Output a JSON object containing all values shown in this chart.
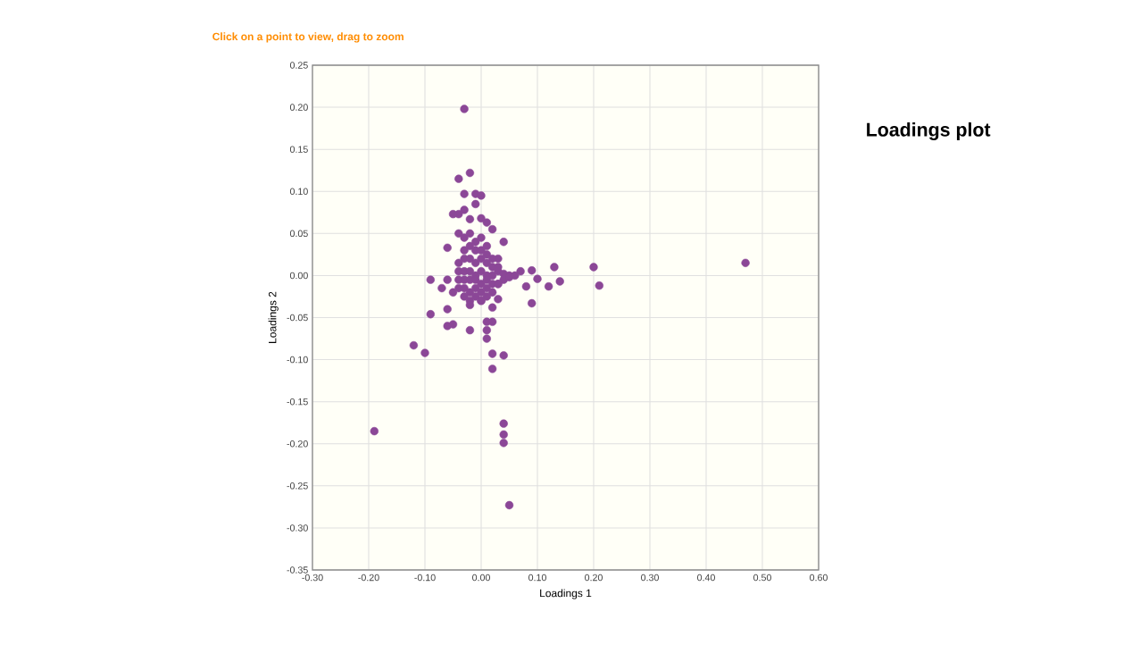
{
  "chart_data": {
    "type": "scatter",
    "title": "Loadings plot",
    "annotations": [
      "Click on a point to view, drag to zoom"
    ],
    "xlabel": "Loadings 1",
    "ylabel": "Loadings 2",
    "x": [
      0.47,
      0.21,
      0.2,
      0.14,
      0.13,
      0.12,
      0.1,
      0.09,
      0.09,
      0.08,
      0.07,
      -0.03,
      -0.02,
      -0.04,
      -0.03,
      -0.01,
      0.0,
      -0.01,
      -0.03,
      -0.04,
      -0.05,
      -0.02,
      0.0,
      0.01,
      0.02,
      -0.04,
      0.04,
      0.03,
      -0.06,
      -0.09,
      -0.06,
      -0.07,
      -0.05,
      -0.06,
      -0.09,
      -0.06,
      -0.05,
      -0.02,
      -0.12,
      -0.1,
      0.01,
      0.02,
      0.02,
      0.01,
      0.01,
      0.02,
      0.04,
      0.02,
      0.04,
      0.04,
      0.04,
      0.05,
      -0.19,
      -0.03,
      -0.02,
      -0.01,
      0.0,
      0.01,
      -0.03,
      -0.02,
      -0.01,
      0.0,
      0.01,
      0.02,
      -0.04,
      -0.03,
      -0.02,
      -0.01,
      0.0,
      0.01,
      0.02,
      0.03,
      -0.04,
      -0.03,
      -0.02,
      -0.01,
      0.0,
      0.01,
      0.02,
      0.03,
      0.04,
      0.05,
      -0.04,
      -0.03,
      -0.02,
      -0.01,
      0.0,
      0.01,
      0.02,
      0.03,
      0.04,
      0.05,
      0.06,
      -0.04,
      -0.03,
      -0.02,
      -0.01,
      0.0,
      0.01,
      0.02,
      0.03,
      -0.03,
      -0.02,
      -0.01,
      0.0,
      0.01,
      -0.02,
      0.0,
      0.03
    ],
    "values": [
      0.015,
      -0.012,
      0.01,
      -0.007,
      0.01,
      -0.013,
      -0.004,
      0.006,
      -0.033,
      -0.013,
      0.005,
      0.198,
      0.122,
      0.115,
      0.097,
      0.097,
      0.095,
      0.085,
      0.078,
      0.073,
      0.073,
      0.067,
      0.068,
      0.063,
      0.055,
      0.05,
      0.04,
      0.02,
      0.033,
      -0.005,
      -0.005,
      -0.015,
      -0.02,
      -0.04,
      -0.046,
      -0.06,
      -0.058,
      -0.065,
      -0.083,
      -0.092,
      -0.055,
      -0.055,
      -0.038,
      -0.065,
      -0.075,
      -0.093,
      -0.095,
      -0.111,
      -0.176,
      -0.189,
      -0.199,
      -0.273,
      -0.185,
      0.045,
      0.05,
      0.04,
      0.045,
      0.035,
      0.03,
      0.035,
      0.03,
      0.03,
      0.025,
      0.02,
      0.015,
      0.02,
      0.02,
      0.015,
      0.02,
      0.015,
      0.01,
      0.01,
      0.005,
      0.005,
      0.005,
      0.0,
      0.005,
      0.0,
      0.0,
      0.005,
      0.002,
      0.0,
      -0.005,
      -0.005,
      -0.005,
      -0.005,
      -0.01,
      -0.005,
      -0.01,
      -0.01,
      -0.005,
      -0.002,
      0.0,
      -0.015,
      -0.015,
      -0.02,
      -0.015,
      -0.02,
      -0.015,
      -0.02,
      -0.01,
      -0.025,
      -0.03,
      -0.025,
      -0.03,
      -0.025,
      -0.035,
      -0.03,
      -0.028
    ],
    "color": "#8b4797",
    "marker": "circle",
    "grid": true,
    "xlim": [
      -0.3,
      0.6
    ],
    "ylim": [
      -0.35,
      0.25
    ],
    "xticks": [
      {
        "value": -0.3,
        "label": "-0.30"
      },
      {
        "value": -0.2,
        "label": "-0.20"
      },
      {
        "value": -0.1,
        "label": "-0.10"
      },
      {
        "value": 0,
        "label": "0.00"
      },
      {
        "value": 0.1,
        "label": "0.10"
      },
      {
        "value": 0.2,
        "label": "0.20"
      },
      {
        "value": 0.3,
        "label": "0.30"
      },
      {
        "value": 0.4,
        "label": "0.40"
      },
      {
        "value": 0.5,
        "label": "0.50"
      },
      {
        "value": 0.6,
        "label": "0.60"
      }
    ],
    "yticks": [
      {
        "value": -0.35,
        "label": "-0.35"
      },
      {
        "value": -0.3,
        "label": "-0.30"
      },
      {
        "value": -0.25,
        "label": "-0.25"
      },
      {
        "value": -0.2,
        "label": "-0.20"
      },
      {
        "value": -0.15,
        "label": "-0.15"
      },
      {
        "value": -0.1,
        "label": "-0.10"
      },
      {
        "value": -0.05,
        "label": "-0.05"
      },
      {
        "value": 0,
        "label": "0.00"
      },
      {
        "value": 0.05,
        "label": "0.05"
      },
      {
        "value": 0.1,
        "label": "0.10"
      },
      {
        "value": 0.15,
        "label": "0.15"
      },
      {
        "value": 0.2,
        "label": "0.20"
      },
      {
        "value": 0.25,
        "label": "0.25"
      }
    ]
  }
}
